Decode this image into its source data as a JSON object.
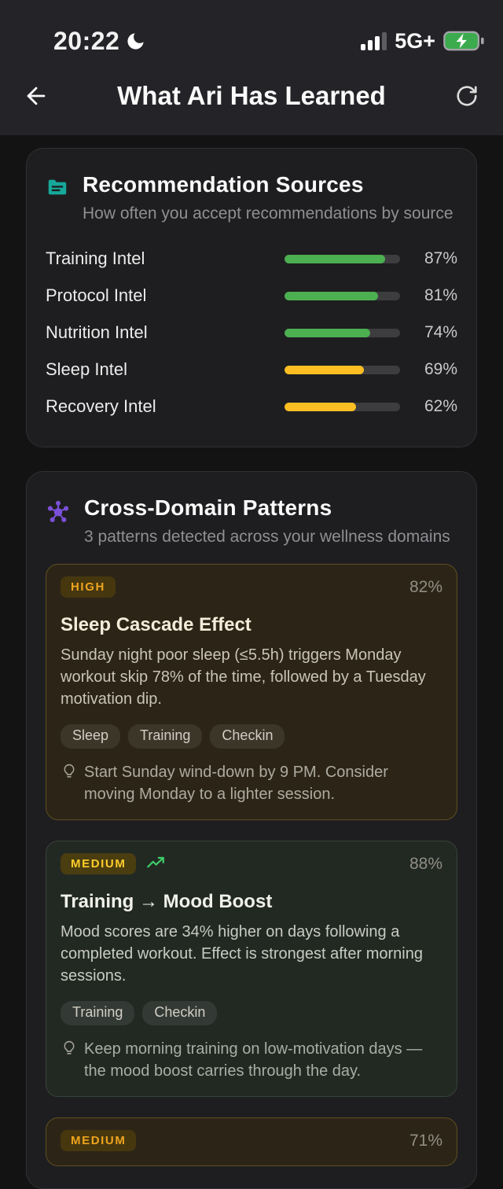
{
  "status_bar": {
    "time": "20:22",
    "network": "5G+"
  },
  "nav": {
    "title": "What Ari Has Learned"
  },
  "colors": {
    "accent_teal": "#16a89a",
    "accent_purple": "#7a50d6",
    "bar_green": "#4caf50",
    "bar_yellow": "#fcbe23",
    "badge_high_text": "#efa41d",
    "badge_medium_text": "#fccd2c",
    "trend_green": "#3ecf6a"
  },
  "sources_card": {
    "title": "Recommendation Sources",
    "subtitle": "How often you accept recommendations by source",
    "rows": [
      {
        "label": "Training Intel",
        "value": 87,
        "display": "87%",
        "color": "#4caf50"
      },
      {
        "label": "Protocol Intel",
        "value": 81,
        "display": "81%",
        "color": "#4caf50"
      },
      {
        "label": "Nutrition Intel",
        "value": 74,
        "display": "74%",
        "color": "#4caf50"
      },
      {
        "label": "Sleep Intel",
        "value": 69,
        "display": "69%",
        "color": "#fcbe23"
      },
      {
        "label": "Recovery Intel",
        "value": 62,
        "display": "62%",
        "color": "#fcbe23"
      }
    ]
  },
  "patterns_card": {
    "title": "Cross-Domain Patterns",
    "subtitle": "3 patterns detected across your wellness domains",
    "patterns": [
      {
        "variant": "amber",
        "badge": "HIGH",
        "trend_icon": false,
        "confidence": "82%",
        "title": "Sleep Cascade Effect",
        "description": "Sunday night poor sleep (≤5.5h) triggers Monday workout skip 78% of the time, followed by a Tuesday motivation dip.",
        "tags": [
          "Sleep",
          "Training",
          "Checkin"
        ],
        "tip": "Start Sunday wind-down by 9 PM. Consider moving Monday to a lighter session."
      },
      {
        "variant": "green",
        "badge": "MEDIUM",
        "trend_icon": true,
        "confidence": "88%",
        "title": "Training → Mood Boost",
        "description": "Mood scores are 34% higher on days following a completed workout. Effect is strongest after morning sessions.",
        "tags": [
          "Training",
          "Checkin"
        ],
        "tip": "Keep morning training on low-motivation days — the mood boost carries through the day."
      },
      {
        "variant": "amber",
        "badge": "MEDIUM",
        "trend_icon": false,
        "confidence": "71%"
      }
    ]
  }
}
